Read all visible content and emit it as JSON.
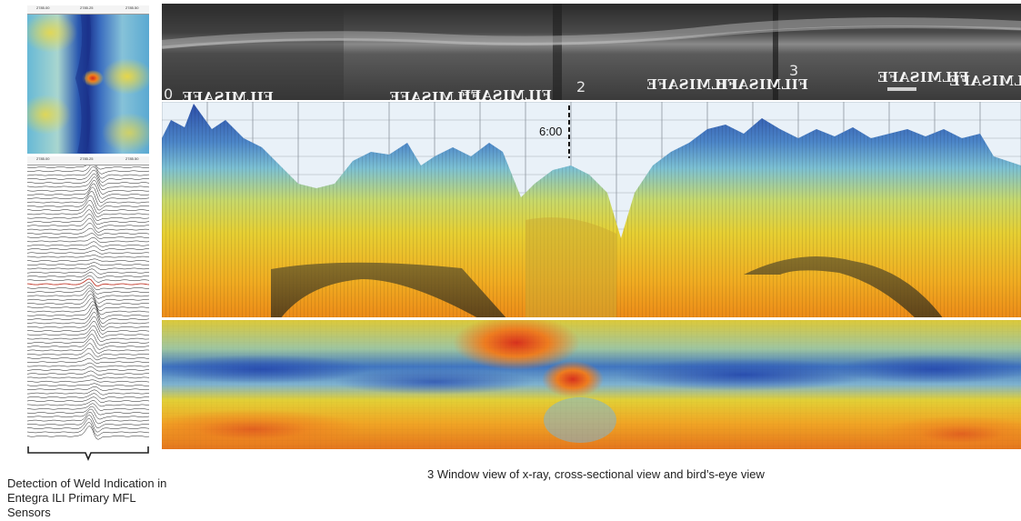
{
  "left_panel": {
    "heatmap_icon": "mfl-heatmap-image",
    "ruler_labels": [
      "2785.00",
      "2785.25",
      "2785.50"
    ],
    "trace_ruler_labels": [
      "2785.00",
      "2785.25",
      "2785.50"
    ],
    "caption": "Detection of Weld Indication in Entegra ILI Primary MFL Sensors"
  },
  "xray": {
    "image_icon": "xray-film-image",
    "window_numbers": [
      "0",
      "2",
      "3"
    ],
    "marker_text": "FILMISAFE"
  },
  "cross_section": {
    "image_icon": "3d-cross-section-image",
    "clock_label": "6:00"
  },
  "birdseye": {
    "image_icon": "birdseye-heatmap-image"
  },
  "main_caption": "3 Window view of x-ray, cross-sectional view and bird’s-eye view",
  "colors": {
    "deep_blue": "#1f3f9b",
    "blue": "#4a87c9",
    "cyan": "#7fc7d9",
    "yellow": "#e9d23a",
    "orange": "#ef8a1c",
    "red": "#d8321e",
    "grid_bg": "#e9f1f8"
  }
}
